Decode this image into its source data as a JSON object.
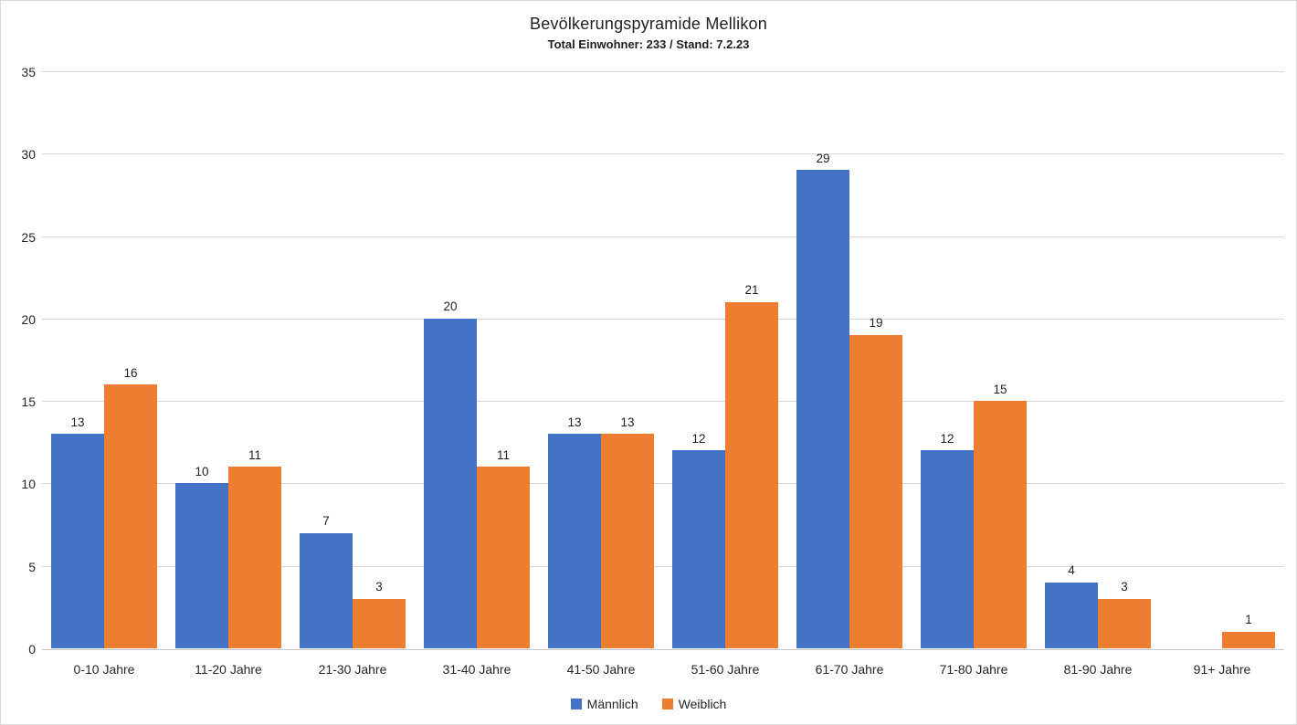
{
  "chart_data": {
    "type": "bar",
    "title": "Bevölkerungspyramide Mellikon",
    "subtitle": "Total Einwohner: 233 / Stand: 7.2.23",
    "categories": [
      "0-10 Jahre",
      "11-20 Jahre",
      "21-30 Jahre",
      "31-40 Jahre",
      "41-50 Jahre",
      "51-60 Jahre",
      "61-70 Jahre",
      "71-80 Jahre",
      "81-90 Jahre",
      "91+ Jahre"
    ],
    "series": [
      {
        "name": "Männlich",
        "color": "#4472C4",
        "values": [
          13,
          10,
          7,
          20,
          13,
          12,
          29,
          12,
          4,
          0
        ]
      },
      {
        "name": "Weiblich",
        "color": "#ED7D31",
        "values": [
          16,
          11,
          3,
          11,
          13,
          21,
          19,
          15,
          3,
          1
        ]
      }
    ],
    "ylim": [
      0,
      35
    ],
    "yticks": [
      0,
      5,
      10,
      15,
      20,
      25,
      30,
      35
    ],
    "xlabel": "",
    "ylabel": "",
    "grid": true,
    "data_labels": true,
    "legend_position": "bottom",
    "colors": {
      "gridline": "#d9d9d9",
      "axis_line": "#c6c6c6",
      "text": "#262626",
      "background": "#ffffff"
    }
  }
}
